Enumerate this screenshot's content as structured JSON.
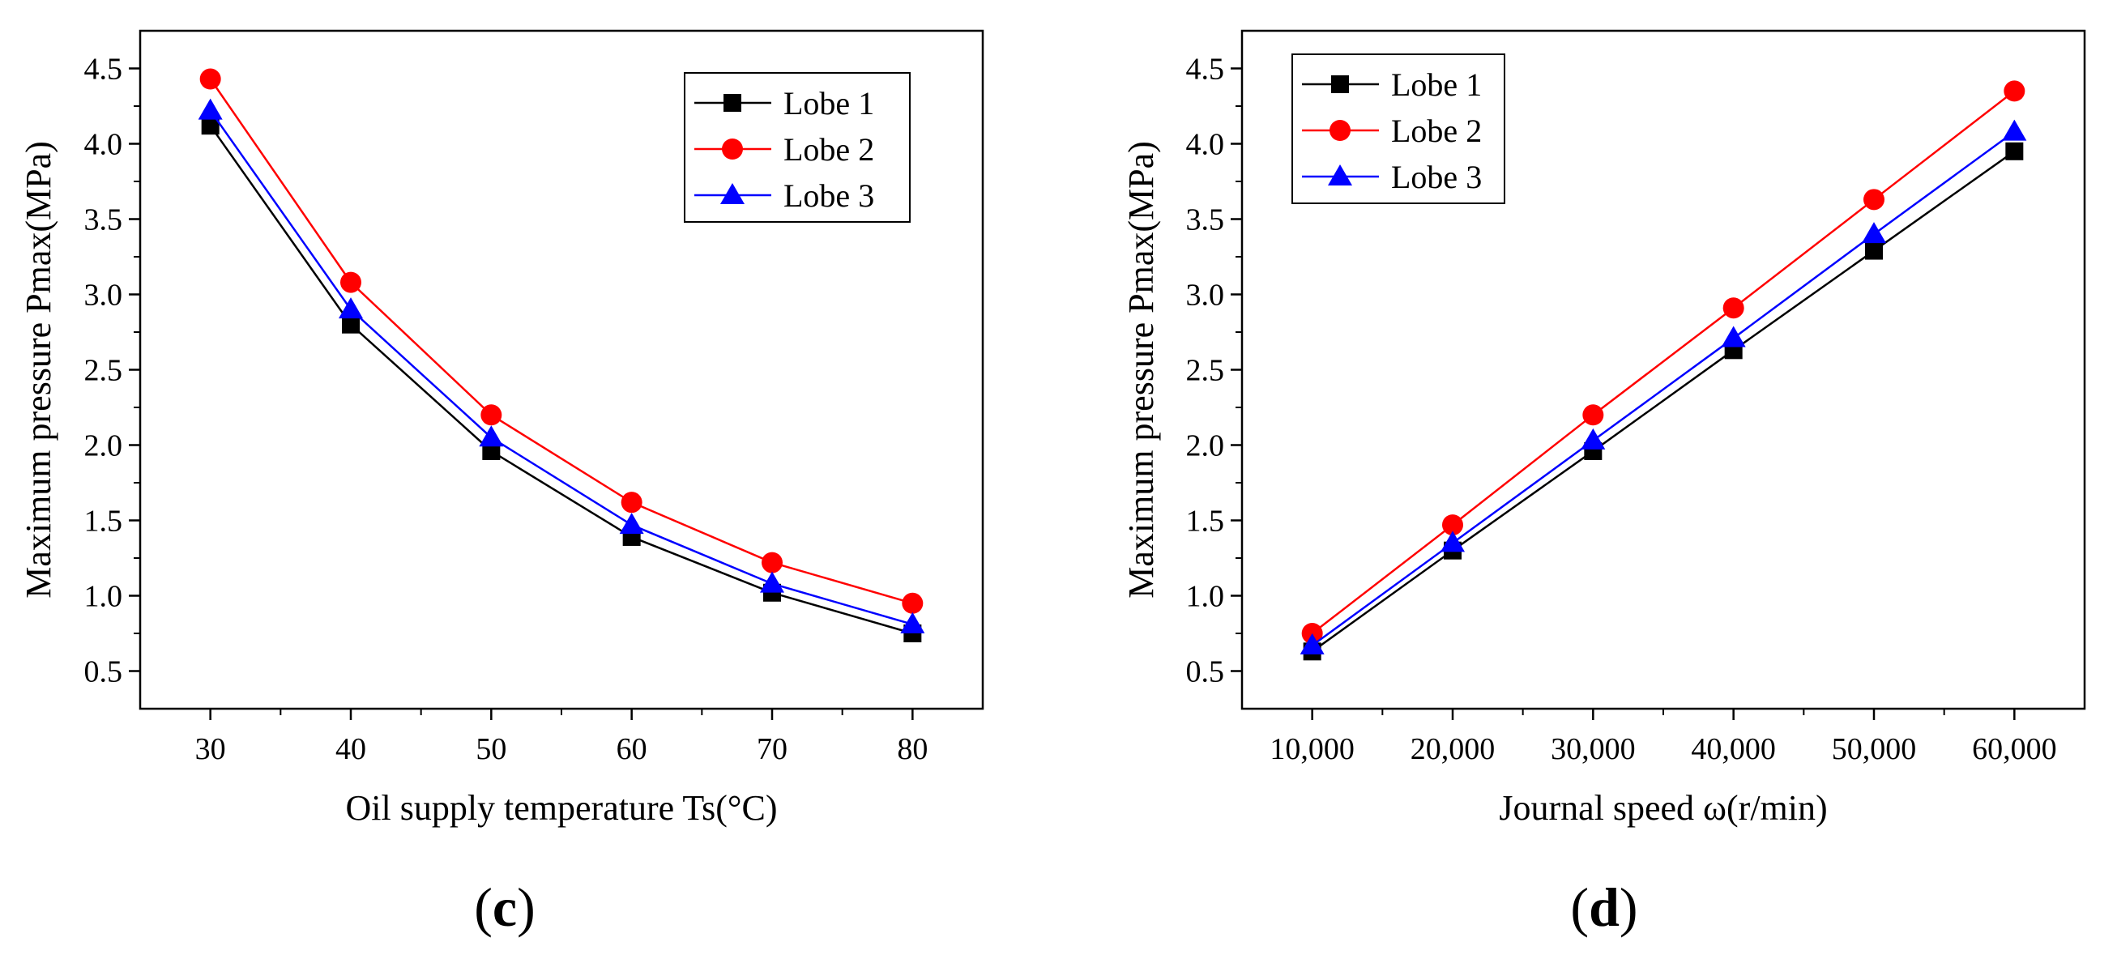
{
  "chart_data": [
    {
      "type": "line",
      "panel_label": "c",
      "xlabel": "Oil supply temperature Ts(°C)",
      "ylabel": "Maximum pressure Pmax(MPa)",
      "x": [
        30,
        40,
        50,
        60,
        70,
        80
      ],
      "x_tick_labels": [
        "30",
        "40",
        "50",
        "60",
        "70",
        "80"
      ],
      "xlim": [
        25,
        85
      ],
      "ylim": [
        0.25,
        4.75
      ],
      "y_ticks": [
        0.5,
        1.0,
        1.5,
        2.0,
        2.5,
        3.0,
        3.5,
        4.0,
        4.5
      ],
      "y_tick_labels": [
        "0.5",
        "1.0",
        "1.5",
        "2.0",
        "2.5",
        "3.0",
        "3.5",
        "4.0",
        "4.5"
      ],
      "grid": false,
      "legend_position": "top-right",
      "series": [
        {
          "name": "Lobe 1",
          "marker": "square",
          "color": "#000000",
          "values": [
            4.12,
            2.8,
            1.96,
            1.39,
            1.02,
            0.75
          ]
        },
        {
          "name": "Lobe 2",
          "marker": "circle",
          "color": "#ff0000",
          "values": [
            4.43,
            3.08,
            2.2,
            1.62,
            1.22,
            0.95
          ]
        },
        {
          "name": "Lobe 3",
          "marker": "triangle",
          "color": "#0000ff",
          "values": [
            4.22,
            2.9,
            2.05,
            1.47,
            1.08,
            0.81
          ]
        }
      ]
    },
    {
      "type": "line",
      "panel_label": "d",
      "xlabel": "Journal speed ω(r/min)",
      "ylabel": "Maximum pressure Pmax(MPa)",
      "x": [
        10000,
        20000,
        30000,
        40000,
        50000,
        60000
      ],
      "x_tick_labels": [
        "10,000",
        "20,000",
        "30,000",
        "40,000",
        "50,000",
        "60,000"
      ],
      "xlim": [
        5000,
        65000
      ],
      "ylim": [
        0.25,
        4.75
      ],
      "y_ticks": [
        0.5,
        1.0,
        1.5,
        2.0,
        2.5,
        3.0,
        3.5,
        4.0,
        4.5
      ],
      "y_tick_labels": [
        "0.5",
        "1.0",
        "1.5",
        "2.0",
        "2.5",
        "3.0",
        "3.5",
        "4.0",
        "4.5"
      ],
      "grid": false,
      "legend_position": "top-left",
      "series": [
        {
          "name": "Lobe 1",
          "marker": "square",
          "color": "#000000",
          "values": [
            0.63,
            1.3,
            1.96,
            2.63,
            3.29,
            3.95
          ]
        },
        {
          "name": "Lobe 2",
          "marker": "circle",
          "color": "#ff0000",
          "values": [
            0.75,
            1.47,
            2.2,
            2.91,
            3.63,
            4.35
          ]
        },
        {
          "name": "Lobe 3",
          "marker": "triangle",
          "color": "#0000ff",
          "values": [
            0.67,
            1.35,
            2.03,
            2.71,
            3.4,
            4.08
          ]
        }
      ]
    }
  ]
}
